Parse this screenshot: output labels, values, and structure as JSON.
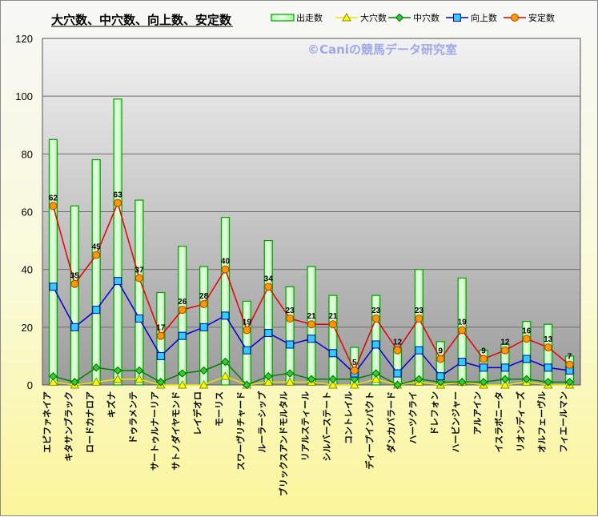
{
  "chart_data": {
    "type": "bar",
    "title": "大穴数、中穴数、向上数、安定数",
    "watermark": "©Caniの競馬データ研究室",
    "ylim": [
      0,
      120
    ],
    "yticks": [
      0,
      20,
      40,
      60,
      80,
      100,
      120
    ],
    "grid": true,
    "legend_position": "top-right",
    "categories": [
      "エピファネイア",
      "キタサンブラック",
      "ロードカナロア",
      "キズナ",
      "ドゥラメンテ",
      "サートゥルナーリア",
      "サトノダイヤモンド",
      "レイデオロ",
      "モーリス",
      "スワーヴリチャード",
      "ルーラーシップ",
      "ブリックスアンドモルタル",
      "リアルスティール",
      "シルバーステート",
      "コントレイル",
      "ディープインパクト",
      "ダンカバラード",
      "ハーツクライ",
      "ドレフォン",
      "ハービンジャー",
      "アルアイン",
      "イスラボニータ",
      "リオンディーズ",
      "オルフェーヴル",
      "フィエールマン"
    ],
    "series": [
      {
        "name": "出走数",
        "kind": "bar",
        "color": "#00a000",
        "values": [
          85,
          62,
          78,
          99,
          64,
          32,
          48,
          41,
          58,
          29,
          50,
          34,
          41,
          31,
          13,
          31,
          13,
          40,
          15,
          37,
          12,
          14,
          22,
          21,
          10
        ]
      },
      {
        "name": "大穴数",
        "kind": "line",
        "color": "#e6e600",
        "values": [
          1,
          0,
          1,
          2,
          2,
          0,
          0,
          0,
          3,
          0,
          1,
          1,
          1,
          0,
          0,
          2,
          0,
          1,
          0,
          1,
          0,
          0,
          1,
          0,
          0
        ]
      },
      {
        "name": "中穴数",
        "kind": "line",
        "color": "#008000",
        "values": [
          3,
          1,
          6,
          5,
          5,
          1,
          4,
          5,
          8,
          0,
          3,
          4,
          2,
          2,
          2,
          4,
          0,
          2,
          1,
          1,
          1,
          2,
          2,
          1,
          1
        ]
      },
      {
        "name": "向上数",
        "kind": "line",
        "color": "#0000cc",
        "values": [
          34,
          20,
          26,
          36,
          23,
          10,
          17,
          20,
          24,
          12,
          18,
          14,
          16,
          11,
          4,
          14,
          4,
          12,
          3,
          8,
          6,
          6,
          9,
          6,
          5
        ]
      },
      {
        "name": "安定数",
        "kind": "line",
        "color": "#e00000",
        "labeled": true,
        "values": [
          62,
          35,
          45,
          63,
          37,
          17,
          26,
          28,
          40,
          19,
          34,
          23,
          21,
          21,
          5,
          23,
          12,
          23,
          9,
          19,
          9,
          12,
          16,
          13,
          7
        ]
      }
    ]
  }
}
